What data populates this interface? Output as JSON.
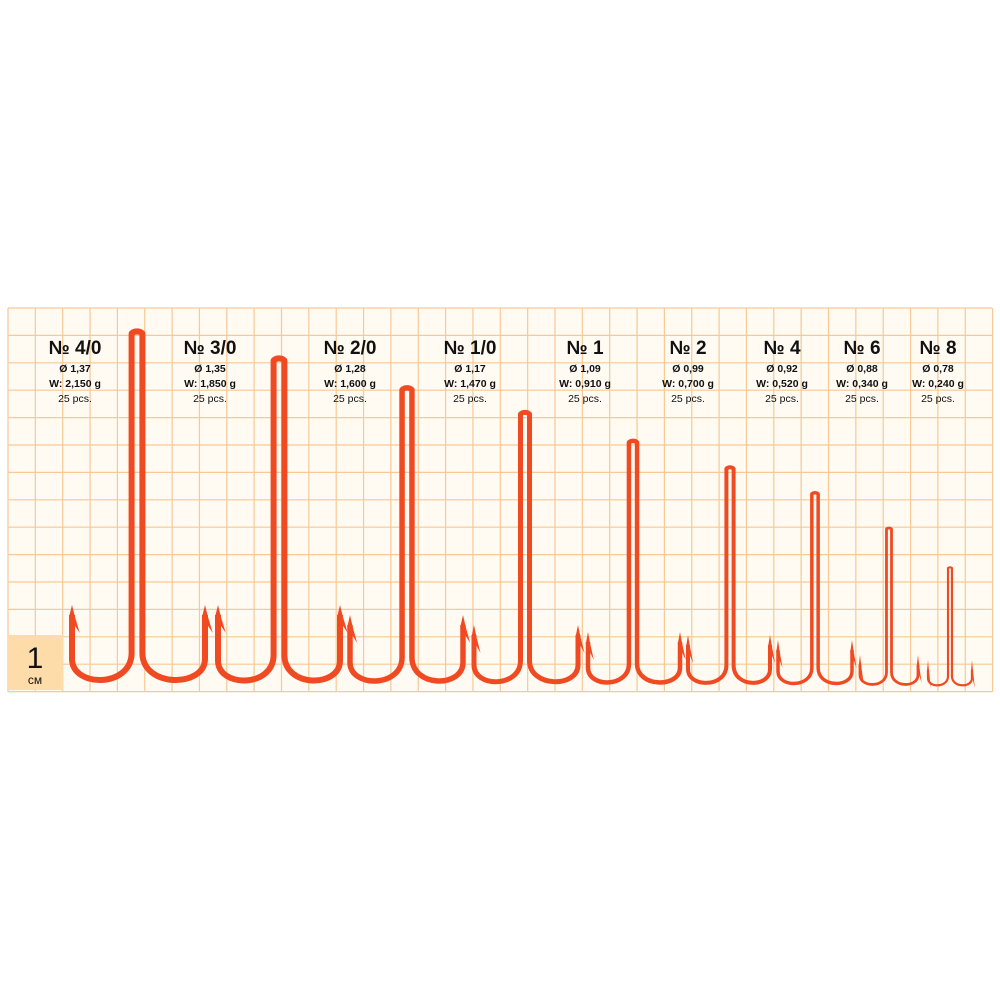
{
  "scale": {
    "value_label": "1",
    "unit": "см"
  },
  "hooks": [
    {
      "size": "№ 4/0",
      "diameter": "Ø 1,37",
      "weight": "W: 2,150 g",
      "count": "25 pcs."
    },
    {
      "size": "№ 3/0",
      "diameter": "Ø 1,35",
      "weight": "W: 1,850 g",
      "count": "25 pcs."
    },
    {
      "size": "№ 2/0",
      "diameter": "Ø 1,28",
      "weight": "W: 1,600 g",
      "count": "25 pcs."
    },
    {
      "size": "№ 1/0",
      "diameter": "Ø 1,17",
      "weight": "W: 1,470 g",
      "count": "25 pcs."
    },
    {
      "size": "№ 1",
      "diameter": "Ø 1,09",
      "weight": "W: 0,910 g",
      "count": "25 pcs."
    },
    {
      "size": "№ 2",
      "diameter": "Ø 0,99",
      "weight": "W: 0,700 g",
      "count": "25 pcs."
    },
    {
      "size": "№ 4",
      "diameter": "Ø 0,92",
      "weight": "W: 0,520 g",
      "count": "25 pcs."
    },
    {
      "size": "№ 6",
      "diameter": "Ø 0,88",
      "weight": "W: 0,340 g",
      "count": "25 pcs."
    },
    {
      "size": "№ 8",
      "diameter": "Ø 0,78",
      "weight": "W: 0,240 g",
      "count": "25 pcs."
    }
  ]
}
